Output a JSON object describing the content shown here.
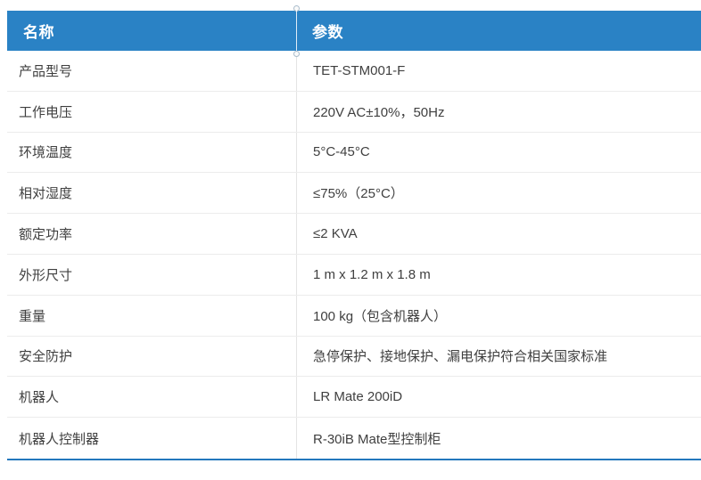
{
  "colors": {
    "header_bg": "#2a82c5",
    "header_text": "#ffffff",
    "bottom_border": "#2478bd",
    "row_divider": "#ececec",
    "body_text": "#3f3f3f"
  },
  "table": {
    "header": {
      "name": "名称",
      "param": "参数"
    },
    "rows": [
      {
        "name": "产品型号",
        "value": "TET-STM001-F"
      },
      {
        "name": "工作电压",
        "value": "220V AC±10%，50Hz"
      },
      {
        "name": "环境温度",
        "value": "5°C-45°C"
      },
      {
        "name": "相对湿度",
        "value": "≤75%（25°C）"
      },
      {
        "name": "额定功率",
        "value": "≤2 KVA"
      },
      {
        "name": "外形尺寸",
        "value": "1 m x 1.2 m x 1.8 m"
      },
      {
        "name": "重量",
        "value": "100 kg（包含机器人）"
      },
      {
        "name": "安全防护",
        "value": "急停保护、接地保护、漏电保护符合相关国家标准"
      },
      {
        "name": "机器人",
        "value": "LR Mate 200iD"
      },
      {
        "name": "机器人控制器",
        "value": "R-30iB Mate型控制柜"
      }
    ]
  }
}
